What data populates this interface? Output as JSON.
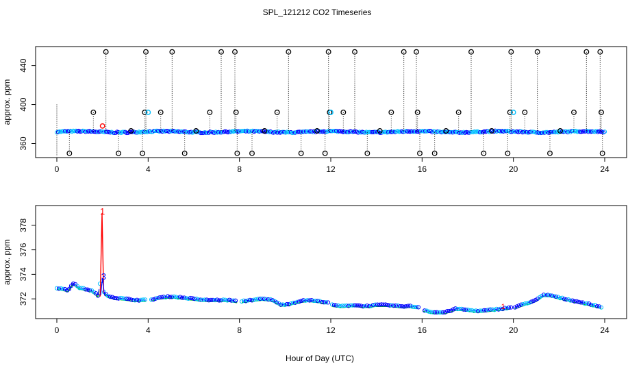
{
  "page": {
    "title": "SPL_121212  CO2 Timeseries",
    "xlabel": "Hour of Day (UTC)"
  },
  "colors": {
    "outlier": "#000000",
    "series_a": "#0000ff",
    "series_b": "#00bfff",
    "series_c": "#00cc00",
    "spike": "#ff0000",
    "axis": "#000000"
  },
  "chart_data": [
    {
      "type": "scatter",
      "title": "SPL_121212  CO2 Timeseries",
      "xlabel": "",
      "ylabel": "approx. ppm",
      "xlim": [
        0,
        24
      ],
      "ylim": [
        347,
        458
      ],
      "xticks": [
        0,
        4,
        8,
        12,
        16,
        20,
        24
      ],
      "yticks": [
        360,
        400,
        440
      ],
      "grid": false,
      "baseline": 372,
      "series": [
        {
          "kind": "outlier-high",
          "x": [
            2.15,
            3.9,
            5.05,
            7.2,
            7.8,
            10.15,
            11.9,
            13.05,
            15.2,
            15.75,
            18.15,
            19.9,
            21.05,
            23.2,
            23.8
          ],
          "y": [
            454,
            454,
            454,
            454,
            454,
            454,
            454,
            454,
            454,
            454,
            454,
            454,
            454,
            454,
            454
          ]
        },
        {
          "kind": "outlier-mid",
          "x": [
            1.6,
            3.85,
            4.55,
            6.7,
            7.85,
            9.65,
            11.95,
            12.55,
            14.65,
            15.8,
            17.6,
            19.85,
            20.5,
            22.65,
            23.85
          ],
          "y": [
            392,
            392,
            392,
            392,
            392,
            392,
            392,
            392,
            392,
            392,
            392,
            392,
            392,
            392,
            392
          ]
        },
        {
          "kind": "outlier-low",
          "x": [
            0.55,
            2.7,
            3.75,
            5.6,
            7.9,
            8.55,
            10.7,
            11.75,
            13.6,
            15.9,
            16.55,
            18.7,
            19.75,
            21.6,
            23.9
          ],
          "y": [
            350,
            350,
            350,
            350,
            350,
            350,
            350,
            350,
            350,
            350,
            350,
            350,
            350,
            350,
            350
          ]
        },
        {
          "kind": "outlier-near",
          "x": [
            3.25,
            6.1,
            9.1,
            11.4,
            14.15,
            17.05,
            19.05,
            22.05
          ],
          "y": [
            373,
            373,
            373,
            373,
            373,
            373,
            373,
            373
          ]
        },
        {
          "kind": "cyan-high",
          "x": [
            4.0,
            12.0,
            20.0
          ],
          "y": [
            392,
            392,
            392
          ]
        },
        {
          "kind": "spike",
          "x": [
            2.0
          ],
          "y": [
            378
          ]
        }
      ]
    },
    {
      "type": "line",
      "title": "",
      "xlabel": "Hour of Day (UTC)",
      "ylabel": "approx. ppm",
      "xlim": [
        0,
        24
      ],
      "ylim": [
        370.5,
        379.5
      ],
      "xticks": [
        0,
        4,
        8,
        12,
        16,
        20,
        24
      ],
      "yticks": [
        372,
        374,
        376,
        378
      ],
      "grid": false,
      "gaps": [
        [
          3.9,
          4.05
        ],
        [
          7.9,
          8.05
        ],
        [
          11.9,
          12.05
        ],
        [
          15.9,
          16.05
        ],
        [
          19.9,
          20.05
        ]
      ],
      "series": [
        {
          "kind": "co2",
          "x": [
            0,
            0.5,
            0.7,
            1.0,
            1.5,
            1.8,
            1.95,
            2.05,
            2.2,
            2.5,
            3.0,
            3.5,
            3.9,
            4.05,
            4.5,
            5.0,
            5.5,
            6.0,
            6.5,
            7.0,
            7.5,
            7.9,
            8.05,
            8.5,
            9.0,
            9.5,
            9.8,
            10.2,
            10.6,
            11.0,
            11.5,
            11.9,
            12.05,
            12.5,
            13.0,
            13.5,
            14.0,
            14.5,
            15.0,
            15.5,
            15.9,
            16.05,
            16.5,
            17.0,
            17.5,
            18.0,
            18.5,
            19.0,
            19.5,
            19.9,
            20.05,
            20.5,
            21.0,
            21.3,
            21.6,
            22.0,
            22.5,
            23.0,
            23.5,
            23.9
          ],
          "y": [
            372.9,
            372.7,
            373.3,
            372.9,
            372.7,
            372.3,
            373.8,
            372.6,
            372.3,
            372.1,
            372.0,
            371.9,
            371.9,
            371.9,
            372.1,
            372.2,
            372.1,
            372.0,
            371.9,
            371.9,
            371.9,
            371.8,
            371.8,
            371.9,
            372.0,
            371.9,
            371.5,
            371.6,
            371.8,
            371.9,
            371.8,
            371.7,
            371.5,
            371.4,
            371.5,
            371.4,
            371.5,
            371.5,
            371.4,
            371.4,
            371.3,
            371.1,
            370.9,
            370.9,
            371.2,
            371.1,
            371.0,
            371.1,
            371.2,
            371.3,
            371.3,
            371.6,
            371.9,
            372.3,
            372.3,
            372.1,
            371.9,
            371.7,
            371.5,
            371.3
          ]
        },
        {
          "kind": "spike",
          "x": [
            1.9,
            1.98,
            2.05
          ],
          "y": [
            372.2,
            379.0,
            372.5
          ]
        }
      ]
    }
  ],
  "labels": {
    "spike_marker_a": "1",
    "spike_marker_b": "3",
    "tail_marker": "1"
  }
}
